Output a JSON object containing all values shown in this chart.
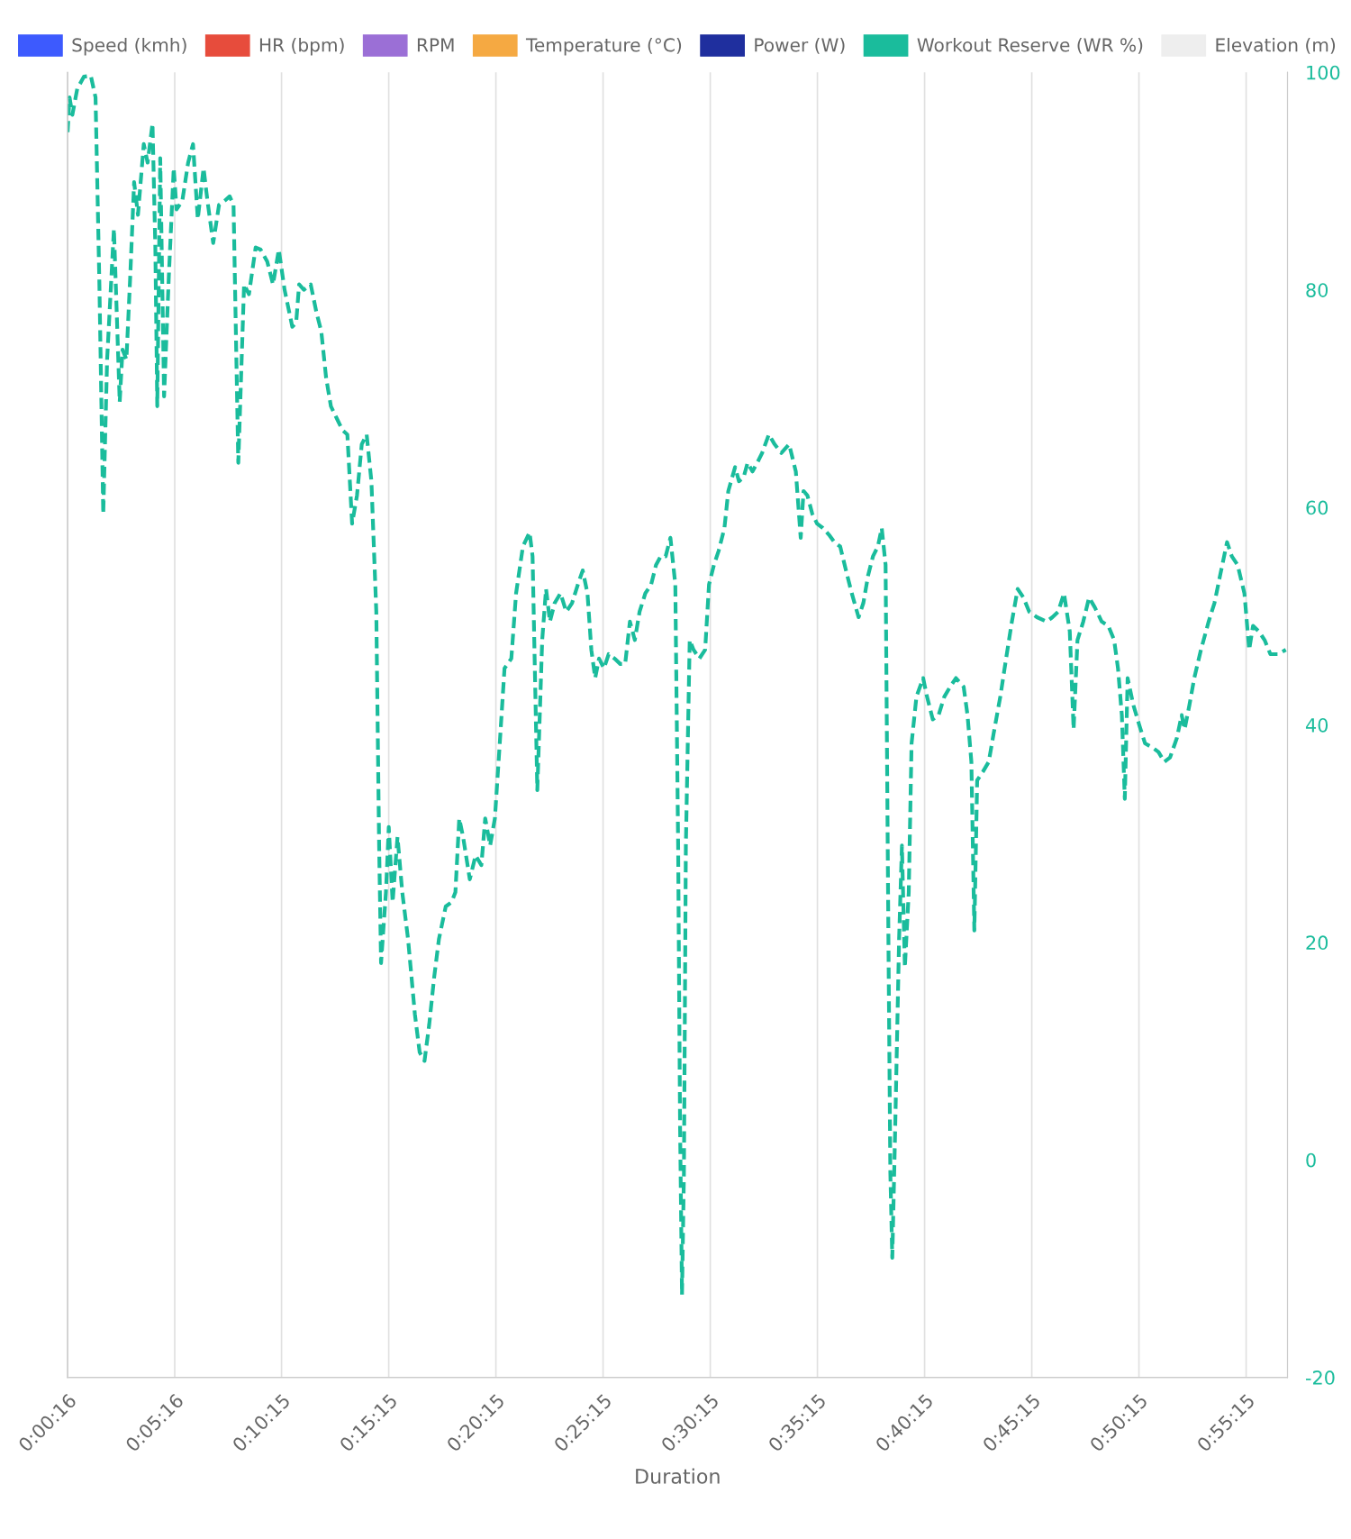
{
  "chart_data": {
    "type": "line",
    "xlabel": "Duration",
    "xlim": [
      0.00444,
      0.953
    ],
    "xticks": [
      {
        "value": 0.00444,
        "label": "0:00:16"
      },
      {
        "value": 0.08778,
        "label": "0:05:16"
      },
      {
        "value": 0.17083,
        "label": "0:10:15"
      },
      {
        "value": 0.25417,
        "label": "0:15:15"
      },
      {
        "value": 0.3375,
        "label": "0:20:15"
      },
      {
        "value": 0.42083,
        "label": "0:25:15"
      },
      {
        "value": 0.50417,
        "label": "0:30:15"
      },
      {
        "value": 0.5875,
        "label": "0:35:15"
      },
      {
        "value": 0.67083,
        "label": "0:40:15"
      },
      {
        "value": 0.75417,
        "label": "0:45:15"
      },
      {
        "value": 0.8375,
        "label": "0:50:15"
      },
      {
        "value": 0.92083,
        "label": "0:55:15"
      }
    ],
    "y2lim": [
      -20,
      100
    ],
    "y2ticks": [
      -20,
      0,
      20,
      40,
      60,
      80,
      100
    ],
    "grid": "x",
    "legend": "top",
    "marker": "none",
    "series": [
      {
        "name": "Speed (kmh)",
        "color": "#3d5afe"
      },
      {
        "name": "HR (bpm)",
        "color": "#e74c3c"
      },
      {
        "name": "RPM",
        "color": "#9b6fd6"
      },
      {
        "name": "Temperature (°C)",
        "color": "#f5a942"
      },
      {
        "name": "Power (W)",
        "color": "#1f2f9e"
      },
      {
        "name": "Workout Reserve (WR %)",
        "color": "#1abc9c",
        "axis": "y2",
        "line_style": "dashed",
        "x": [
          0.0045,
          0.006,
          0.0082,
          0.012,
          0.0172,
          0.0225,
          0.0262,
          0.0292,
          0.0322,
          0.0352,
          0.0405,
          0.045,
          0.0472,
          0.0502,
          0.0532,
          0.0562,
          0.0592,
          0.0637,
          0.0667,
          0.0705,
          0.0727,
          0.0742,
          0.0765,
          0.0795,
          0.0832,
          0.087,
          0.0892,
          0.0937,
          0.0982,
          0.102,
          0.1057,
          0.1102,
          0.1132,
          0.1177,
          0.1222,
          0.1267,
          0.1305,
          0.1335,
          0.1372,
          0.1417,
          0.1455,
          0.1507,
          0.1545,
          0.1597,
          0.1642,
          0.1687,
          0.1732,
          0.1792,
          0.1822,
          0.1845,
          0.1882,
          0.1935,
          0.198,
          0.2017,
          0.2055,
          0.2092,
          0.2145,
          0.2182,
          0.222,
          0.2257,
          0.2295,
          0.2332,
          0.237,
          0.2407,
          0.2445,
          0.2467,
          0.2482,
          0.252,
          0.2542,
          0.2572,
          0.261,
          0.2647,
          0.2692,
          0.2745,
          0.2782,
          0.282,
          0.2857,
          0.2895,
          0.2932,
          0.2985,
          0.303,
          0.306,
          0.309,
          0.312,
          0.3172,
          0.3217,
          0.3262,
          0.3292,
          0.333,
          0.3367,
          0.3405,
          0.3442,
          0.3495,
          0.3532,
          0.3585,
          0.3637,
          0.366,
          0.3697,
          0.3735,
          0.3765,
          0.3795,
          0.3832,
          0.3877,
          0.3922,
          0.3967,
          0.4012,
          0.405,
          0.4087,
          0.4117,
          0.4147,
          0.4177,
          0.4215,
          0.4252,
          0.4297,
          0.4342,
          0.438,
          0.4417,
          0.4455,
          0.4492,
          0.4537,
          0.4582,
          0.462,
          0.4657,
          0.4695,
          0.4732,
          0.477,
          0.4792,
          0.4807,
          0.4822,
          0.4837,
          0.4852,
          0.4882,
          0.4912,
          0.4957,
          0.5002,
          0.5032,
          0.507,
          0.5107,
          0.5152,
          0.5182,
          0.5235,
          0.5265,
          0.5302,
          0.5332,
          0.537,
          0.5407,
          0.5445,
          0.5497,
          0.5542,
          0.5595,
          0.5655,
          0.5707,
          0.5745,
          0.5767,
          0.5797,
          0.5835,
          0.5872,
          0.5917,
          0.597,
          0.6007,
          0.6052,
          0.6097,
          0.6142,
          0.6195,
          0.6232,
          0.627,
          0.6307,
          0.6345,
          0.6375,
          0.6405,
          0.6427,
          0.6442,
          0.6457,
          0.648,
          0.651,
          0.6532,
          0.6555,
          0.6585,
          0.6607,
          0.6645,
          0.6697,
          0.6727,
          0.6772,
          0.6817,
          0.6862,
          0.6907,
          0.6952,
          0.7012,
          0.7042,
          0.7072,
          0.7095,
          0.7117,
          0.7162,
          0.7207,
          0.7245,
          0.7297,
          0.7342,
          0.7387,
          0.7432,
          0.7477,
          0.7522,
          0.7582,
          0.7657,
          0.7702,
          0.7747,
          0.7792,
          0.7837,
          0.7867,
          0.7897,
          0.7942,
          0.7987,
          0.8032,
          0.8085,
          0.8137,
          0.8182,
          0.8212,
          0.8242,
          0.8265,
          0.8287,
          0.8332,
          0.8377,
          0.8422,
          0.8482,
          0.8527,
          0.8572,
          0.8617,
          0.867,
          0.8707,
          0.873,
          0.8767,
          0.8805,
          0.8857,
          0.8917,
          0.8962,
          0.9007,
          0.906,
          0.9097,
          0.9142,
          0.9195,
          0.9232,
          0.9262,
          0.9307,
          0.9352,
          0.9397,
          0.9457,
          0.9517
        ],
        "values": [
          94.5,
          97.7,
          96.1,
          98.5,
          99.6,
          99.7,
          97.7,
          80.5,
          59.4,
          73.6,
          85.6,
          69.7,
          74.5,
          73.6,
          81.3,
          89.9,
          86.9,
          93.4,
          91.7,
          95.3,
          83.9,
          69.3,
          92.1,
          70.2,
          81.3,
          91.2,
          87.4,
          88.2,
          91.7,
          93.4,
          86.5,
          91.2,
          88.2,
          84.3,
          87.8,
          88.2,
          88.6,
          87.8,
          64.1,
          80.5,
          79.6,
          83.9,
          83.7,
          82.6,
          80.5,
          83.7,
          80.0,
          76.6,
          77.0,
          80.5,
          80.0,
          80.5,
          77.9,
          76.2,
          71.9,
          69.3,
          68.0,
          67.1,
          66.7,
          58.5,
          61.1,
          65.8,
          66.7,
          62.4,
          50.4,
          28.9,
          18.1,
          24.6,
          30.6,
          23.7,
          29.7,
          24.6,
          20.3,
          13.4,
          9.9,
          9.1,
          12.5,
          16.8,
          20.3,
          23.3,
          23.7,
          24.6,
          31.4,
          29.7,
          25.8,
          28.0,
          27.1,
          31.4,
          28.9,
          31.4,
          38.3,
          45.2,
          46.1,
          52.1,
          56.4,
          57.7,
          55.5,
          34.0,
          47.8,
          52.5,
          49.5,
          51.2,
          52.1,
          50.4,
          51.2,
          52.9,
          54.2,
          52.1,
          46.9,
          44.3,
          46.1,
          45.2,
          46.5,
          46.1,
          45.6,
          45.6,
          49.5,
          47.8,
          50.4,
          52.1,
          52.9,
          54.7,
          55.5,
          55.5,
          57.2,
          52.9,
          28.9,
          3.1,
          -12.4,
          -1.2,
          28.9,
          47.8,
          46.9,
          46.1,
          46.9,
          52.9,
          54.7,
          56.0,
          58.1,
          61.5,
          63.7,
          62.4,
          62.8,
          64.1,
          63.3,
          64.1,
          65.0,
          66.7,
          65.8,
          65.0,
          65.8,
          63.3,
          57.2,
          61.5,
          61.1,
          59.4,
          58.5,
          58.1,
          57.4,
          56.8,
          56.4,
          54.2,
          52.1,
          49.9,
          51.2,
          53.8,
          55.5,
          56.4,
          58.1,
          54.7,
          20.3,
          -1.2,
          -9.0,
          3.1,
          20.3,
          28.9,
          17.7,
          24.6,
          38.3,
          42.6,
          44.3,
          42.6,
          40.5,
          40.9,
          42.6,
          43.5,
          44.3,
          43.5,
          40.9,
          36.6,
          21.1,
          34.9,
          35.7,
          36.6,
          39.2,
          42.6,
          46.1,
          49.5,
          52.5,
          51.7,
          50.4,
          49.9,
          49.5,
          49.9,
          50.4,
          52.1,
          48.6,
          39.6,
          47.8,
          49.5,
          51.7,
          50.8,
          49.5,
          49.1,
          47.8,
          45.2,
          40.9,
          33.2,
          44.3,
          41.8,
          40.0,
          38.3,
          37.9,
          37.5,
          36.6,
          37.0,
          38.8,
          40.9,
          39.6,
          41.8,
          44.3,
          46.9,
          49.5,
          51.2,
          53.8,
          56.8,
          55.5,
          54.7,
          52.1,
          46.9,
          49.1,
          48.6,
          47.8,
          46.5,
          46.5,
          46.9
        ]
      },
      {
        "name": "Elevation (m)",
        "color": "#eeeeee"
      }
    ]
  }
}
